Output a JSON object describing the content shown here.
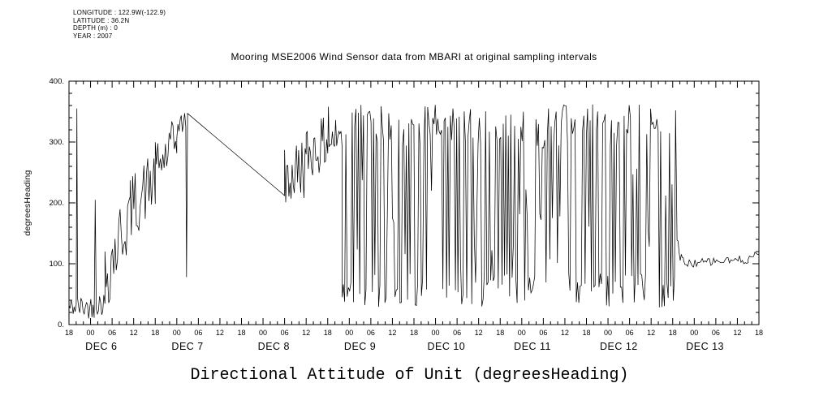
{
  "page": {
    "bg": "#ffffff",
    "fg": "#000000"
  },
  "meta_block": {
    "lines": [
      "LONGITUDE : 122.9W(-122.9)",
      "LATITUDE : 36.2N",
      "DEPTH (m) : 0",
      "YEAR : 2007"
    ]
  },
  "chart_data": {
    "type": "line",
    "title": "Mooring MSE2006 Wind Sensor data from MBARI at original sampling intervals",
    "xlabel": "Directional Attitude of Unit (degreesHeading)",
    "ylabel": "degreesHeading",
    "ylim": [
      0,
      400
    ],
    "grid": false,
    "legend": false,
    "line_color": "#000000",
    "y_major_ticks": [
      {
        "value": 0,
        "label": "0."
      },
      {
        "value": 100,
        "label": "100."
      },
      {
        "value": 200,
        "label": "200."
      },
      {
        "value": 300,
        "label": "300."
      },
      {
        "value": 400,
        "label": "400."
      }
    ],
    "y_minor_step": 20,
    "x_range_hours": [
      0,
      192
    ],
    "x_tick_step_hours": 6,
    "x_minor_step_hours": 2,
    "x_tick_labels": [
      "18",
      "00",
      "06",
      "12",
      "18",
      "00",
      "06",
      "12",
      "18",
      "00",
      "06",
      "12",
      "18",
      "00",
      "06",
      "12",
      "18",
      "00",
      "06",
      "12",
      "18",
      "00",
      "06",
      "12",
      "18",
      "00",
      "06",
      "12",
      "18",
      "00",
      "06",
      "12",
      "18"
    ],
    "x_date_labels": [
      {
        "hour": 6,
        "label": "DEC 6"
      },
      {
        "hour": 30,
        "label": "DEC 7"
      },
      {
        "hour": 54,
        "label": "DEC 8"
      },
      {
        "hour": 78,
        "label": "DEC 9"
      },
      {
        "hour": 102,
        "label": "DEC 10"
      },
      {
        "hour": 126,
        "label": "DEC 11"
      },
      {
        "hour": 150,
        "label": "DEC 12"
      },
      {
        "hour": 174,
        "label": "DEC 13"
      }
    ],
    "series": [
      {
        "name": "degreesHeading",
        "seed": 42,
        "segments": [
          {
            "type": "flat_noise",
            "t0": 0,
            "t1": 2.0,
            "dt": 0.3,
            "lo": 12,
            "hi": 45
          },
          {
            "type": "spike",
            "t": 2.2,
            "y": 355
          },
          {
            "type": "flat_noise",
            "t0": 2.4,
            "t1": 7.0,
            "dt": 0.3,
            "lo": 10,
            "hi": 48
          },
          {
            "type": "spike",
            "t": 7.3,
            "y": 205
          },
          {
            "type": "flat_noise",
            "t0": 7.6,
            "t1": 10.0,
            "dt": 0.3,
            "lo": 15,
            "hi": 55
          },
          {
            "type": "trend_noise",
            "t0": 10,
            "t1": 17,
            "dt": 0.35,
            "y0": 80,
            "y1": 185,
            "amp": 65
          },
          {
            "type": "trend_noise",
            "t0": 17,
            "t1": 24,
            "dt": 0.35,
            "y0": 190,
            "y1": 240,
            "amp": 55
          },
          {
            "type": "trend_noise",
            "t0": 24,
            "t1": 30,
            "dt": 0.35,
            "y0": 255,
            "y1": 300,
            "amp": 45
          },
          {
            "type": "trend_noise",
            "t0": 30,
            "t1": 32.5,
            "dt": 0.3,
            "y0": 320,
            "y1": 338,
            "amp": 18
          },
          {
            "type": "spike",
            "t": 32.7,
            "y": 78
          },
          {
            "type": "line",
            "t0": 33.0,
            "t1": 60.0,
            "y0": 347,
            "y1": 212
          },
          {
            "type": "trend_noise",
            "t0": 60,
            "t1": 66,
            "dt": 0.3,
            "y0": 235,
            "y1": 265,
            "amp": 55
          },
          {
            "type": "trend_noise",
            "t0": 66,
            "t1": 72,
            "dt": 0.3,
            "y0": 280,
            "y1": 300,
            "amp": 45
          },
          {
            "type": "spike",
            "t": 72.2,
            "y": 358
          },
          {
            "type": "trend_noise",
            "t0": 72.4,
            "t1": 76,
            "dt": 0.3,
            "y0": 300,
            "y1": 312,
            "amp": 38
          },
          {
            "type": "bimodal",
            "t0": 76,
            "t1": 168.5,
            "dt": 0.35,
            "low": [
              28,
              85
            ],
            "mid": [
              100,
              260
            ],
            "high": [
              290,
              362
            ],
            "p_low": 0.44,
            "p_mid": 0.08
          },
          {
            "type": "spike",
            "t": 168.8,
            "y": 352
          },
          {
            "type": "trend_noise",
            "t0": 169.2,
            "t1": 171,
            "dt": 0.3,
            "y0": 128,
            "y1": 102,
            "amp": 15
          },
          {
            "type": "trend_noise",
            "t0": 171,
            "t1": 189,
            "dt": 0.4,
            "y0": 100,
            "y1": 107,
            "amp": 7
          },
          {
            "type": "trend_noise",
            "t0": 189,
            "t1": 192,
            "dt": 0.4,
            "y0": 109,
            "y1": 117,
            "amp": 5
          }
        ]
      }
    ]
  }
}
